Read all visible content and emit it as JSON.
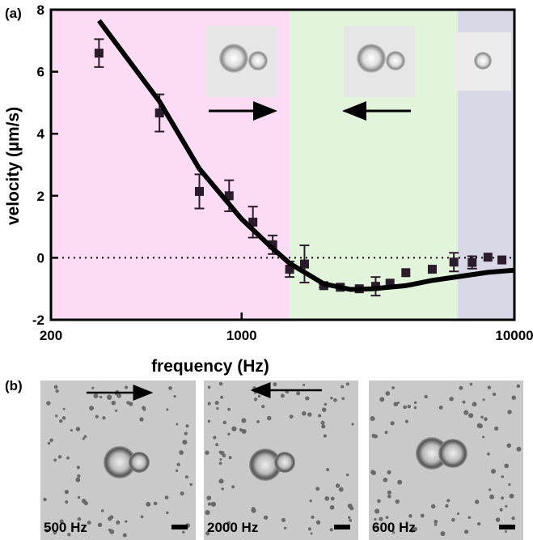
{
  "chart_data": {
    "type": "scatter",
    "panel_label": "(a)",
    "x_label": "frequency (Hz)",
    "y_label": "velocity (µm/s)",
    "xscale": "log",
    "xlim": [
      200,
      10000
    ],
    "xticks": [
      200,
      1000,
      10000
    ],
    "ylim": [
      -2,
      8
    ],
    "yticks": [
      -2,
      0,
      2,
      4,
      6,
      8
    ],
    "zero_line": true,
    "regions": [
      {
        "from": 200,
        "to": 1500,
        "color": "#fcdcf4"
      },
      {
        "from": 1500,
        "to": 6200,
        "color": "#e2f5dc"
      },
      {
        "from": 6200,
        "to": 10000,
        "color": "#d9d8e6"
      }
    ],
    "series": [
      {
        "type": "scatter",
        "color": "#2b1c2b",
        "x": [
          300,
          500,
          700,
          900,
          1100,
          1300,
          1500,
          1700,
          2000,
          2300,
          2700,
          3100,
          3500,
          4000,
          5000,
          6000,
          7000,
          8000,
          9000
        ],
        "values": [
          6.6,
          4.67,
          2.14,
          2.0,
          1.15,
          0.42,
          -0.37,
          -0.2,
          -0.9,
          -0.95,
          -1.0,
          -0.92,
          -0.82,
          -0.48,
          -0.37,
          -0.14,
          -0.15,
          0.02,
          -0.07
        ],
        "errors": [
          0.45,
          0.6,
          0.55,
          0.5,
          0.5,
          0.3,
          0.25,
          0.6,
          0.05,
          null,
          null,
          0.3,
          null,
          null,
          null,
          0.3,
          0.2,
          null,
          null
        ]
      },
      {
        "type": "line",
        "color": "#000000",
        "x": [
          300,
          500,
          700,
          1000,
          1300,
          1500,
          2000,
          2500,
          3000,
          4000,
          5000,
          6000,
          8000,
          10000
        ],
        "values": [
          7.65,
          5.04,
          2.87,
          1.25,
          0.3,
          -0.18,
          -0.84,
          -1.02,
          -1.0,
          -0.9,
          -0.73,
          -0.63,
          -0.47,
          -0.4
        ]
      }
    ]
  },
  "images": {
    "panel_label": "(b)",
    "captions": [
      "500 Hz",
      "2000 Hz",
      "600 Hz"
    ]
  }
}
